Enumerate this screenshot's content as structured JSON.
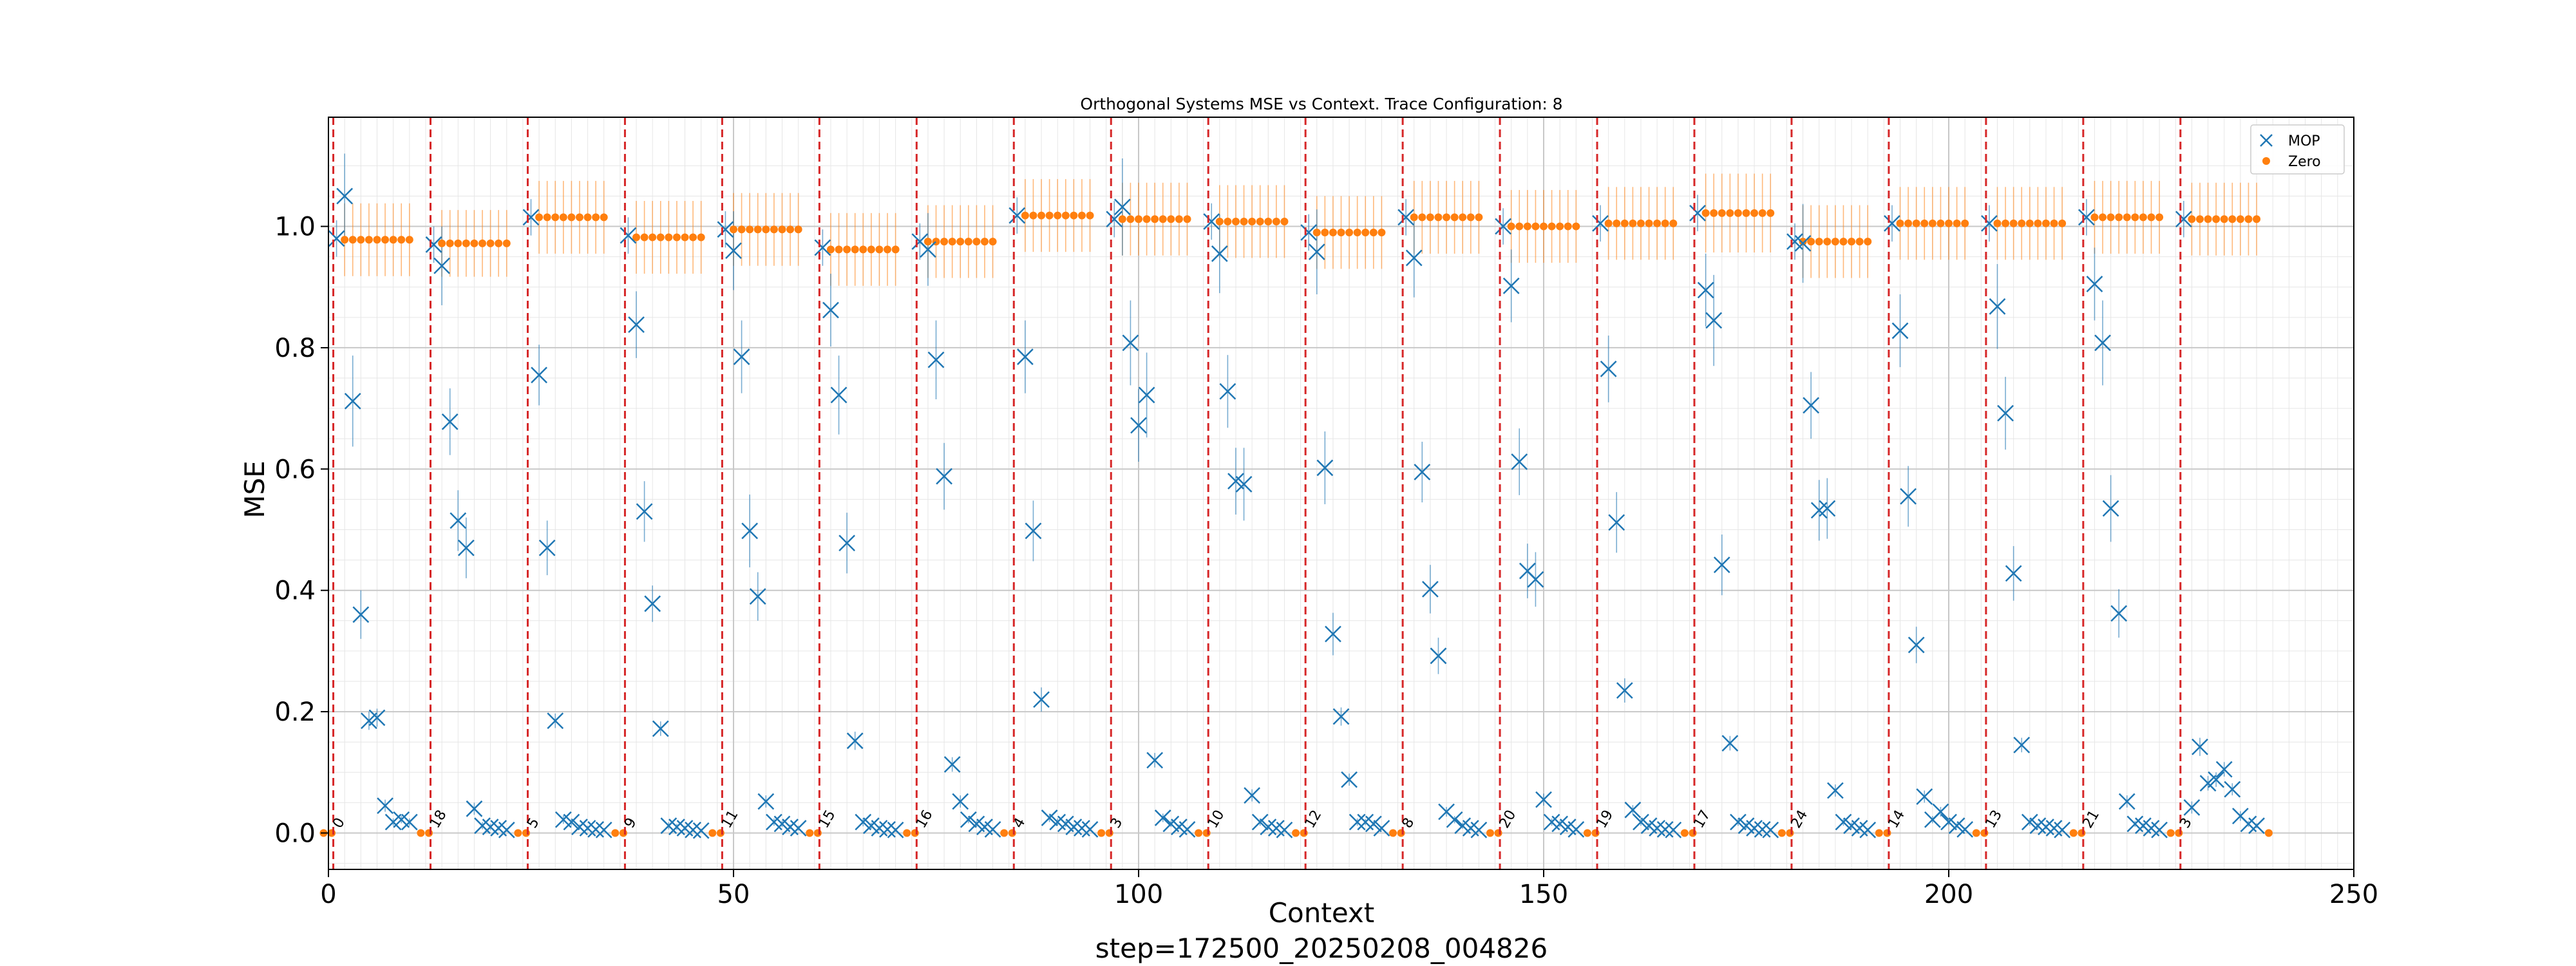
{
  "chart_data": {
    "type": "scatter",
    "title": "Orthogonal Systems MSE vs Context. Trace Configuration: 8",
    "xlabel": "Context",
    "ylabel": "MSE",
    "footer": "step=172500_20250208_004826",
    "xlim": [
      0,
      250
    ],
    "ylim": [
      -0.06,
      1.18
    ],
    "x_ticks": [
      0,
      50,
      100,
      150,
      200,
      250
    ],
    "y_ticks": [
      0.0,
      0.2,
      0.4,
      0.6,
      0.8,
      1.0
    ],
    "x_tick_labels": [
      "0",
      "50",
      "100",
      "150",
      "200",
      "250"
    ],
    "y_tick_labels": [
      "0.0",
      "0.2",
      "0.4",
      "0.6",
      "0.8",
      "1.0"
    ],
    "grid": true,
    "minor_grid": true,
    "legend_position": "top-right",
    "legend": [
      {
        "name": "MOP",
        "marker": "x",
        "color": "#1f77b4"
      },
      {
        "name": "Zero",
        "marker": "o",
        "color": "#ff7f0e"
      }
    ],
    "segment_start_color": "#d62728",
    "segments": [
      {
        "start": 1,
        "label": "0",
        "zero_level": 0.978,
        "zero_err": 0.06,
        "mop": [
          0.98,
          1.05,
          0.712,
          0.36,
          0.185,
          0.19,
          0.045,
          0.018,
          0.022,
          0.018
        ],
        "mop_err": [
          0.03,
          0.07,
          0.075,
          0.04,
          0.015,
          0.015,
          0.01,
          0.006,
          0.006,
          0.006
        ]
      },
      {
        "start": 13,
        "label": "18",
        "zero_level": 0.972,
        "zero_err": 0.055,
        "mop": [
          0.97,
          0.935,
          0.678,
          0.515,
          0.47,
          0.04,
          0.012,
          0.01,
          0.008,
          0.005
        ],
        "mop_err": [
          0.03,
          0.065,
          0.055,
          0.05,
          0.05,
          0.01,
          0.006,
          0.005,
          0.004,
          0.003
        ]
      },
      {
        "start": 25,
        "label": "5",
        "zero_level": 1.015,
        "zero_err": 0.06,
        "mop": [
          1.015,
          0.755,
          0.47,
          0.185,
          0.022,
          0.018,
          0.01,
          0.008,
          0.006,
          0.005
        ],
        "mop_err": [
          0.03,
          0.05,
          0.045,
          0.012,
          0.007,
          0.006,
          0.004,
          0.004,
          0.003,
          0.003
        ]
      },
      {
        "start": 37,
        "label": "9",
        "zero_level": 0.982,
        "zero_err": 0.06,
        "mop": [
          0.985,
          0.838,
          0.53,
          0.378,
          0.172,
          0.012,
          0.01,
          0.008,
          0.005,
          0.004
        ],
        "mop_err": [
          0.03,
          0.055,
          0.05,
          0.03,
          0.012,
          0.006,
          0.005,
          0.004,
          0.003,
          0.003
        ]
      },
      {
        "start": 49,
        "label": "11",
        "zero_level": 0.995,
        "zero_err": 0.06,
        "mop": [
          0.995,
          0.96,
          0.785,
          0.498,
          0.39,
          0.052,
          0.018,
          0.015,
          0.01,
          0.008
        ],
        "mop_err": [
          0.03,
          0.065,
          0.06,
          0.06,
          0.04,
          0.01,
          0.006,
          0.005,
          0.004,
          0.004
        ]
      },
      {
        "start": 61,
        "label": "15",
        "zero_level": 0.962,
        "zero_err": 0.06,
        "mop": [
          0.965,
          0.862,
          0.722,
          0.478,
          0.152,
          0.018,
          0.012,
          0.008,
          0.006,
          0.005
        ],
        "mop_err": [
          0.03,
          0.06,
          0.065,
          0.05,
          0.015,
          0.007,
          0.005,
          0.004,
          0.003,
          0.003
        ]
      },
      {
        "start": 73,
        "label": "16",
        "zero_level": 0.975,
        "zero_err": 0.06,
        "mop": [
          0.975,
          0.962,
          0.78,
          0.588,
          0.113,
          0.052,
          0.022,
          0.015,
          0.01,
          0.006
        ],
        "mop_err": [
          0.03,
          0.06,
          0.065,
          0.055,
          0.012,
          0.01,
          0.006,
          0.005,
          0.004,
          0.003
        ]
      },
      {
        "start": 85,
        "label": "4",
        "zero_level": 1.018,
        "zero_err": 0.06,
        "mop": [
          1.018,
          0.785,
          0.498,
          0.22,
          0.025,
          0.018,
          0.015,
          0.01,
          0.008,
          0.006
        ],
        "mop_err": [
          0.03,
          0.06,
          0.05,
          0.02,
          0.007,
          0.006,
          0.005,
          0.004,
          0.003,
          0.003
        ]
      },
      {
        "start": 97,
        "label": "3",
        "zero_level": 1.012,
        "zero_err": 0.06,
        "mop": [
          1.012,
          1.032,
          0.808,
          0.672,
          0.722,
          0.12,
          0.025,
          0.015,
          0.01,
          0.006
        ],
        "mop_err": [
          0.03,
          0.08,
          0.07,
          0.06,
          0.07,
          0.012,
          0.007,
          0.005,
          0.004,
          0.003
        ]
      },
      {
        "start": 109,
        "label": "10",
        "zero_level": 1.008,
        "zero_err": 0.06,
        "mop": [
          1.008,
          0.955,
          0.728,
          0.58,
          0.575,
          0.062,
          0.018,
          0.01,
          0.008,
          0.005
        ],
        "mop_err": [
          0.03,
          0.065,
          0.06,
          0.055,
          0.06,
          0.01,
          0.006,
          0.004,
          0.003,
          0.003
        ]
      },
      {
        "start": 121,
        "label": "12",
        "zero_level": 0.99,
        "zero_err": 0.06,
        "mop": [
          0.99,
          0.958,
          0.602,
          0.328,
          0.192,
          0.088,
          0.018,
          0.018,
          0.015,
          0.008
        ],
        "mop_err": [
          0.03,
          0.07,
          0.06,
          0.035,
          0.015,
          0.01,
          0.006,
          0.005,
          0.004,
          0.003
        ]
      },
      {
        "start": 133,
        "label": "8",
        "zero_level": 1.015,
        "zero_err": 0.06,
        "mop": [
          1.015,
          0.948,
          0.595,
          0.402,
          0.292,
          0.035,
          0.022,
          0.012,
          0.008,
          0.005
        ],
        "mop_err": [
          0.03,
          0.065,
          0.05,
          0.04,
          0.03,
          0.008,
          0.006,
          0.005,
          0.004,
          0.003
        ]
      },
      {
        "start": 145,
        "label": "20",
        "zero_level": 1.0,
        "zero_err": 0.06,
        "mop": [
          1.0,
          0.902,
          0.612,
          0.432,
          0.418,
          0.055,
          0.018,
          0.015,
          0.01,
          0.006
        ],
        "mop_err": [
          0.03,
          0.06,
          0.055,
          0.045,
          0.045,
          0.01,
          0.006,
          0.005,
          0.004,
          0.003
        ]
      },
      {
        "start": 157,
        "label": "19",
        "zero_level": 1.005,
        "zero_err": 0.06,
        "mop": [
          1.005,
          0.765,
          0.512,
          0.235,
          0.038,
          0.018,
          0.012,
          0.008,
          0.006,
          0.005
        ],
        "mop_err": [
          0.03,
          0.055,
          0.05,
          0.02,
          0.008,
          0.006,
          0.005,
          0.004,
          0.003,
          0.003
        ]
      },
      {
        "start": 169,
        "label": "17",
        "zero_level": 1.022,
        "zero_err": 0.065,
        "mop": [
          1.022,
          0.895,
          0.845,
          0.442,
          0.148,
          0.018,
          0.012,
          0.008,
          0.006,
          0.005
        ],
        "mop_err": [
          0.03,
          0.06,
          0.075,
          0.05,
          0.012,
          0.006,
          0.005,
          0.004,
          0.003,
          0.003
        ]
      },
      {
        "start": 181,
        "label": "24",
        "zero_level": 0.975,
        "zero_err": 0.06,
        "mop": [
          0.975,
          0.972,
          0.705,
          0.532,
          0.535,
          0.07,
          0.018,
          0.012,
          0.008,
          0.005
        ],
        "mop_err": [
          0.03,
          0.065,
          0.055,
          0.05,
          0.05,
          0.01,
          0.006,
          0.005,
          0.004,
          0.003
        ]
      },
      {
        "start": 193,
        "label": "14",
        "zero_level": 1.005,
        "zero_err": 0.06,
        "mop": [
          1.005,
          0.828,
          0.555,
          0.31,
          0.06,
          0.022,
          0.035,
          0.018,
          0.012,
          0.006
        ],
        "mop_err": [
          0.03,
          0.06,
          0.05,
          0.03,
          0.01,
          0.006,
          0.008,
          0.005,
          0.004,
          0.003
        ]
      },
      {
        "start": 205,
        "label": "13",
        "zero_level": 1.005,
        "zero_err": 0.06,
        "mop": [
          1.005,
          0.868,
          0.692,
          0.428,
          0.145,
          0.018,
          0.012,
          0.01,
          0.008,
          0.005
        ],
        "mop_err": [
          0.03,
          0.07,
          0.06,
          0.045,
          0.012,
          0.006,
          0.005,
          0.004,
          0.003,
          0.003
        ]
      },
      {
        "start": 217,
        "label": "21",
        "zero_level": 1.015,
        "zero_err": 0.06,
        "mop": [
          1.015,
          0.905,
          0.808,
          0.535,
          0.362,
          0.052,
          0.015,
          0.012,
          0.008,
          0.005
        ],
        "mop_err": [
          0.03,
          0.06,
          0.07,
          0.055,
          0.04,
          0.01,
          0.005,
          0.004,
          0.003,
          0.003
        ]
      },
      {
        "start": 229,
        "label": "3",
        "zero_level": 1.012,
        "zero_err": 0.06,
        "mop": [
          1.012,
          0.042,
          0.142,
          0.082,
          0.088,
          0.105,
          0.072,
          0.028,
          0.015,
          0.012
        ],
        "mop_err": [
          0.03,
          0.01,
          0.015,
          0.012,
          0.012,
          0.012,
          0.01,
          0.008,
          0.005,
          0.004
        ]
      }
    ]
  }
}
